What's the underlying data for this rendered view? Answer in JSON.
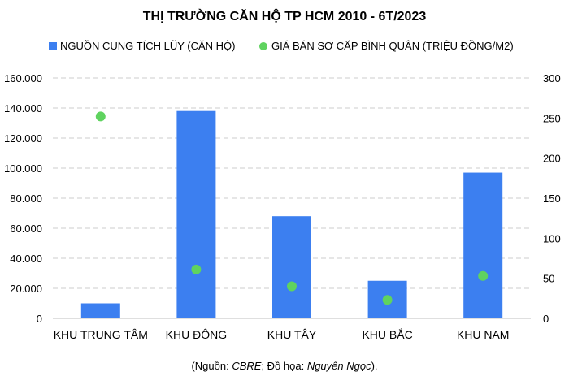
{
  "chart_data": {
    "type": "bar",
    "title": "THỊ TRƯỜNG CĂN HỘ TP HCM 2010 - 6T/2023",
    "categories": [
      "KHU TRUNG TÂM",
      "KHU ĐÔNG",
      "KHU TÂY",
      "KHU BẮC",
      "KHU NAM"
    ],
    "series": [
      {
        "name": "NGUỒN CUNG TÍCH LŨY (CĂN HỘ)",
        "kind": "bar",
        "axis": "left",
        "color": "#3c7ff0",
        "values": [
          10000,
          138000,
          68000,
          25000,
          97000
        ]
      },
      {
        "name": "GIÁ BÁN SƠ CẤP BÌNH QUÂN (TRIỆU ĐỒNG/M2)",
        "kind": "scatter",
        "axis": "right",
        "color": "#5fd35f",
        "values": [
          252,
          61,
          40,
          23,
          53
        ]
      }
    ],
    "ylim_left": [
      0,
      160000
    ],
    "yticks_left": [
      "0",
      "20.000",
      "40.000",
      "60.000",
      "80.000",
      "100.000",
      "120.000",
      "140.000",
      "160.000"
    ],
    "ylim_right": [
      0,
      300
    ],
    "yticks_right": [
      "0",
      "50",
      "100",
      "150",
      "200",
      "250",
      "300"
    ],
    "grid": true,
    "legend": "top"
  },
  "source": {
    "prefix": "(Nguồn: ",
    "org": "CBRE",
    "middle": "; Đồ họa: ",
    "author": "Nguyên Ngọc",
    "suffix": ")."
  }
}
